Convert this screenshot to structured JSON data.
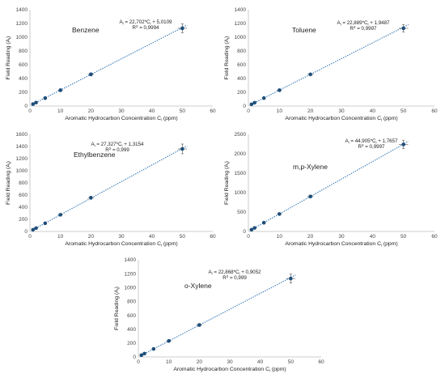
{
  "chart_data": [
    {
      "type": "scatter",
      "title": "Benzene",
      "xlabel": "Aromatic Hydrocarbon Concentration C",
      "xlabel_sub": "i",
      "xlabel_unit": " (ppm)",
      "ylabel": "Field Reading (A",
      "ylabel_sub": "i",
      "ylabel_end": ")",
      "xlim": [
        0,
        60
      ],
      "ylim": [
        0,
        1400
      ],
      "xticks": [
        0,
        10,
        20,
        30,
        40,
        50,
        60
      ],
      "yticks": [
        0,
        200,
        400,
        600,
        800,
        1000,
        1200,
        1400
      ],
      "x": [
        1,
        2,
        5,
        10,
        20,
        50
      ],
      "y": [
        28,
        50,
        115,
        230,
        460,
        1130
      ],
      "y_err": [
        8,
        10,
        12,
        18,
        22,
        65
      ],
      "x_err": [
        0.3,
        0.4,
        0.5,
        0.8,
        1.0,
        1.5
      ],
      "trendline": {
        "slope": 22.702,
        "intercept": 5.0109
      },
      "equation": {
        "lhs": "A",
        "lhs_sub": "i",
        "mid": " = 22,702*C",
        "mid_sub": "i",
        "rhs": " + 5,0109"
      },
      "r2": {
        "label": "R",
        "sup": "2",
        "value": " = 0,9994"
      },
      "grid": false,
      "legend": "none"
    },
    {
      "type": "scatter",
      "title": "Toluene",
      "xlabel": "Aromatic Hydrocarbon Concentration C",
      "xlabel_sub": "i",
      "xlabel_unit": " (ppm)",
      "ylabel": "Field Reading (A",
      "ylabel_sub": "i",
      "ylabel_end": ")",
      "xlim": [
        0,
        60
      ],
      "ylim": [
        0,
        1400
      ],
      "xticks": [
        0,
        10,
        20,
        30,
        40,
        50,
        60
      ],
      "yticks": [
        0,
        200,
        400,
        600,
        800,
        1000,
        1200,
        1400
      ],
      "x": [
        1,
        2,
        5,
        10,
        20,
        50
      ],
      "y": [
        25,
        48,
        115,
        230,
        460,
        1130
      ],
      "y_err": [
        6,
        8,
        10,
        15,
        18,
        55
      ],
      "x_err": [
        0.3,
        0.4,
        0.5,
        0.8,
        1.0,
        1.5
      ],
      "trendline": {
        "slope": 22.889,
        "intercept": 1.9487
      },
      "equation": {
        "lhs": "A",
        "lhs_sub": "i",
        "mid": " = 22,889*C",
        "mid_sub": "i",
        "rhs": " + 1,9487"
      },
      "r2": {
        "label": "R",
        "sup": "2",
        "value": " = 0,9997"
      },
      "grid": false,
      "legend": "none"
    },
    {
      "type": "scatter",
      "title": "Ethylbenzene",
      "xlabel": "Aromatic Hydrocarbon Concentration C",
      "xlabel_sub": "i",
      "xlabel_unit": " (ppm)",
      "ylabel": "Field Reading (A",
      "ylabel_sub": "i",
      "ylabel_end": ")",
      "xlim": [
        0,
        60
      ],
      "ylim": [
        0,
        1600
      ],
      "xticks": [
        0,
        10,
        20,
        30,
        40,
        50,
        60
      ],
      "yticks": [
        0,
        200,
        400,
        600,
        800,
        1000,
        1200,
        1400,
        1600
      ],
      "x": [
        1,
        2,
        5,
        10,
        20,
        50
      ],
      "y": [
        28,
        55,
        135,
        275,
        555,
        1360
      ],
      "y_err": [
        8,
        10,
        15,
        18,
        25,
        80
      ],
      "x_err": [
        0.3,
        0.4,
        0.5,
        0.8,
        1.0,
        1.5
      ],
      "trendline": {
        "slope": 27.327,
        "intercept": 1.3154
      },
      "equation": {
        "lhs": "A",
        "lhs_sub": "i",
        "mid": " = 27,327*C",
        "mid_sub": "i",
        "rhs": " + 1,3154"
      },
      "r2": {
        "label": "R",
        "sup": "2",
        "value": " = 0,999"
      },
      "grid": false,
      "legend": "none"
    },
    {
      "type": "scatter",
      "title": "m,p-Xylene",
      "xlabel": "Aromatic Hydrocarbon Concentration C",
      "xlabel_sub": "i",
      "xlabel_unit": " (ppm)",
      "ylabel": "Field Reading (A",
      "ylabel_sub": "i",
      "ylabel_end": ")",
      "xlim": [
        0,
        60
      ],
      "ylim": [
        0,
        2500
      ],
      "xticks": [
        0,
        10,
        20,
        30,
        40,
        50,
        60
      ],
      "yticks": [
        0,
        500,
        1000,
        1500,
        2000,
        2500
      ],
      "x": [
        1,
        2,
        5,
        10,
        20,
        50
      ],
      "y": [
        45,
        90,
        225,
        450,
        900,
        2240
      ],
      "y_err": [
        10,
        15,
        20,
        30,
        35,
        110
      ],
      "x_err": [
        0.3,
        0.4,
        0.5,
        0.8,
        1.0,
        1.5
      ],
      "trendline": {
        "slope": 44.905,
        "intercept": 1.7657
      },
      "equation": {
        "lhs": "A",
        "lhs_sub": "i",
        "mid": " = 44,905*C",
        "mid_sub": "i",
        "rhs": " + 1,7657"
      },
      "r2": {
        "label": "R",
        "sup": "2",
        "value": " = 0,9997"
      },
      "grid": false,
      "legend": "none"
    },
    {
      "type": "scatter",
      "title": "o-Xylene",
      "xlabel": "Aromatic Hydrocarbon Concentration C",
      "xlabel_sub": "i",
      "xlabel_unit": " (ppm)",
      "ylabel": "Field Reading (A",
      "ylabel_sub": "i",
      "ylabel_end": ")",
      "xlim": [
        0,
        60
      ],
      "ylim": [
        0,
        1400
      ],
      "xticks": [
        0,
        10,
        20,
        30,
        40,
        50,
        60
      ],
      "yticks": [
        0,
        200,
        400,
        600,
        800,
        1000,
        1200,
        1400
      ],
      "x": [
        1,
        2,
        5,
        10,
        20,
        50
      ],
      "y": [
        25,
        48,
        115,
        230,
        460,
        1130
      ],
      "y_err": [
        6,
        8,
        10,
        15,
        18,
        65
      ],
      "x_err": [
        0.3,
        0.4,
        0.5,
        0.8,
        1.0,
        1.5
      ],
      "trendline": {
        "slope": 22.868,
        "intercept": 0.9052
      },
      "equation": {
        "lhs": "A",
        "lhs_sub": "i",
        "mid": " = 22,868*C",
        "mid_sub": "i",
        "rhs": " + 0,9052"
      },
      "r2": {
        "label": "R",
        "sup": "2",
        "value": " = 0,999"
      },
      "grid": false,
      "legend": "none"
    }
  ],
  "colors": {
    "marker": "#1f4e79",
    "trendline": "#2e75b6",
    "axis": "#bfbfbf",
    "error_bar": "#555555"
  }
}
